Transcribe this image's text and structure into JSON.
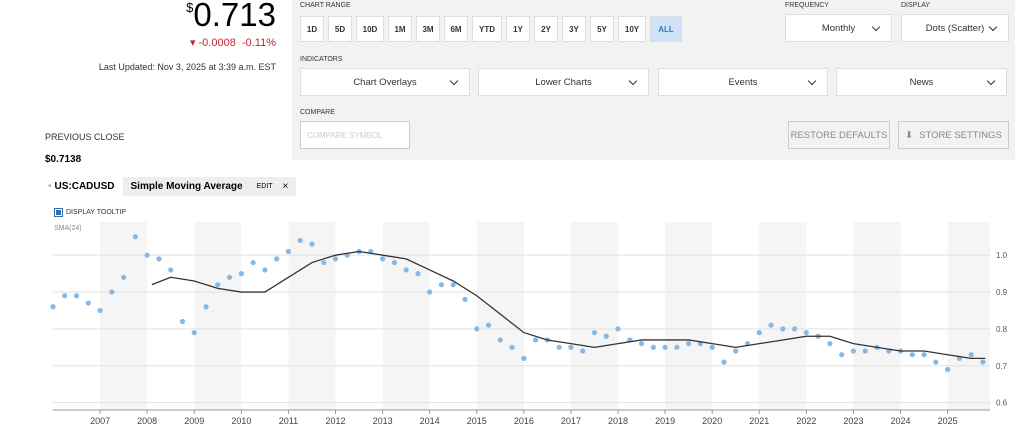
{
  "quote": {
    "currency": "$",
    "price": "0.713",
    "change": "-0.0008",
    "change_percent": "-0.11%",
    "last_updated": "Last Updated: Nov 3, 2025 at 3:39 a.m. EST",
    "previous_close_label": "PREVIOUS CLOSE",
    "previous_close": "$0.7138"
  },
  "controls": {
    "chart_range_label": "CHART RANGE",
    "ranges": [
      "1D",
      "5D",
      "10D",
      "1M",
      "3M",
      "6M",
      "YTD",
      "1Y",
      "2Y",
      "3Y",
      "5Y",
      "10Y",
      "ALL"
    ],
    "active_range": "ALL",
    "frequency_label": "FREQUENCY",
    "frequency": "Monthly",
    "display_label": "DISPLAY",
    "display": "Dots (Scatter)",
    "indicators_label": "INDICATORS",
    "indicators": [
      "Chart Overlays",
      "Lower Charts",
      "Events",
      "News"
    ],
    "compare_label": "COMPARE",
    "compare_placeholder": "COMPARE SYMBOL",
    "restore": "RESTORE DEFAULTS",
    "store": "STORE SETTINGS"
  },
  "legend": {
    "edit": "EDIT",
    "close": "×",
    "tooltip": "DISPLAY TOOLTIP",
    "sma_label": "SMA(24)"
  },
  "chart_data": {
    "type": "scatter",
    "xlim": [
      2006,
      2025.9
    ],
    "ylim": [
      0.58,
      1.09
    ],
    "xticks": [
      2007,
      2008,
      2009,
      2010,
      2011,
      2012,
      2013,
      2014,
      2015,
      2016,
      2017,
      2018,
      2019,
      2020,
      2021,
      2022,
      2023,
      2024,
      2025
    ],
    "yticks": [
      0.6,
      0.7,
      0.8,
      0.9,
      {
        "value": 1,
        "label": "1.0"
      }
    ],
    "series": [
      {
        "name": "US:CADUSD",
        "color": "#86b8e6",
        "x": [
          2006,
          2006.25,
          2006.5,
          2006.75,
          2007,
          2007.25,
          2007.5,
          2007.75,
          2008,
          2008.25,
          2008.5,
          2008.75,
          2009,
          2009.25,
          2009.5,
          2009.75,
          2010,
          2010.25,
          2010.5,
          2010.75,
          2011,
          2011.25,
          2011.5,
          2011.75,
          2012,
          2012.25,
          2012.5,
          2012.75,
          2013,
          2013.25,
          2013.5,
          2013.75,
          2014,
          2014.25,
          2014.5,
          2014.75,
          2015,
          2015.25,
          2015.5,
          2015.75,
          2016,
          2016.25,
          2016.5,
          2016.75,
          2017,
          2017.25,
          2017.5,
          2017.75,
          2018,
          2018.25,
          2018.5,
          2018.75,
          2019,
          2019.25,
          2019.5,
          2019.75,
          2020,
          2020.25,
          2020.5,
          2020.75,
          2021,
          2021.25,
          2021.5,
          2021.75,
          2022,
          2022.25,
          2022.5,
          2022.75,
          2023,
          2023.25,
          2023.5,
          2023.75,
          2024,
          2024.25,
          2024.5,
          2024.75,
          2025,
          2025.25,
          2025.5,
          2025.75
        ],
        "values": [
          0.86,
          0.89,
          0.89,
          0.87,
          0.85,
          0.9,
          0.94,
          1.05,
          1.0,
          0.99,
          0.96,
          0.82,
          0.79,
          0.86,
          0.92,
          0.94,
          0.95,
          0.98,
          0.96,
          0.99,
          1.01,
          1.04,
          1.03,
          0.98,
          0.99,
          1.0,
          1.01,
          1.01,
          0.99,
          0.98,
          0.96,
          0.95,
          0.9,
          0.92,
          0.92,
          0.88,
          0.8,
          0.81,
          0.77,
          0.75,
          0.72,
          0.77,
          0.77,
          0.75,
          0.75,
          0.74,
          0.79,
          0.78,
          0.8,
          0.77,
          0.76,
          0.75,
          0.75,
          0.75,
          0.76,
          0.76,
          0.75,
          0.71,
          0.74,
          0.76,
          0.79,
          0.81,
          0.8,
          0.8,
          0.79,
          0.78,
          0.76,
          0.73,
          0.74,
          0.74,
          0.75,
          0.74,
          0.74,
          0.73,
          0.73,
          0.71,
          0.69,
          0.72,
          0.73,
          0.71
        ]
      },
      {
        "name": "Simple Moving Average",
        "color": "#333333",
        "line": true,
        "x": [
          2008.1,
          2008.5,
          2009,
          2009.5,
          2010,
          2010.5,
          2011,
          2011.5,
          2012,
          2012.5,
          2013,
          2013.5,
          2014,
          2014.5,
          2015,
          2015.5,
          2016,
          2016.5,
          2017,
          2017.5,
          2018,
          2018.5,
          2019,
          2019.5,
          2020,
          2020.5,
          2021,
          2021.5,
          2022,
          2022.5,
          2023,
          2023.5,
          2024,
          2024.5,
          2025,
          2025.5,
          2025.8
        ],
        "values": [
          0.92,
          0.94,
          0.93,
          0.91,
          0.9,
          0.9,
          0.94,
          0.98,
          1.0,
          1.01,
          1.0,
          0.99,
          0.96,
          0.93,
          0.89,
          0.84,
          0.79,
          0.77,
          0.76,
          0.75,
          0.76,
          0.77,
          0.77,
          0.77,
          0.76,
          0.75,
          0.76,
          0.77,
          0.78,
          0.78,
          0.76,
          0.75,
          0.74,
          0.74,
          0.73,
          0.72,
          0.72
        ]
      }
    ]
  }
}
